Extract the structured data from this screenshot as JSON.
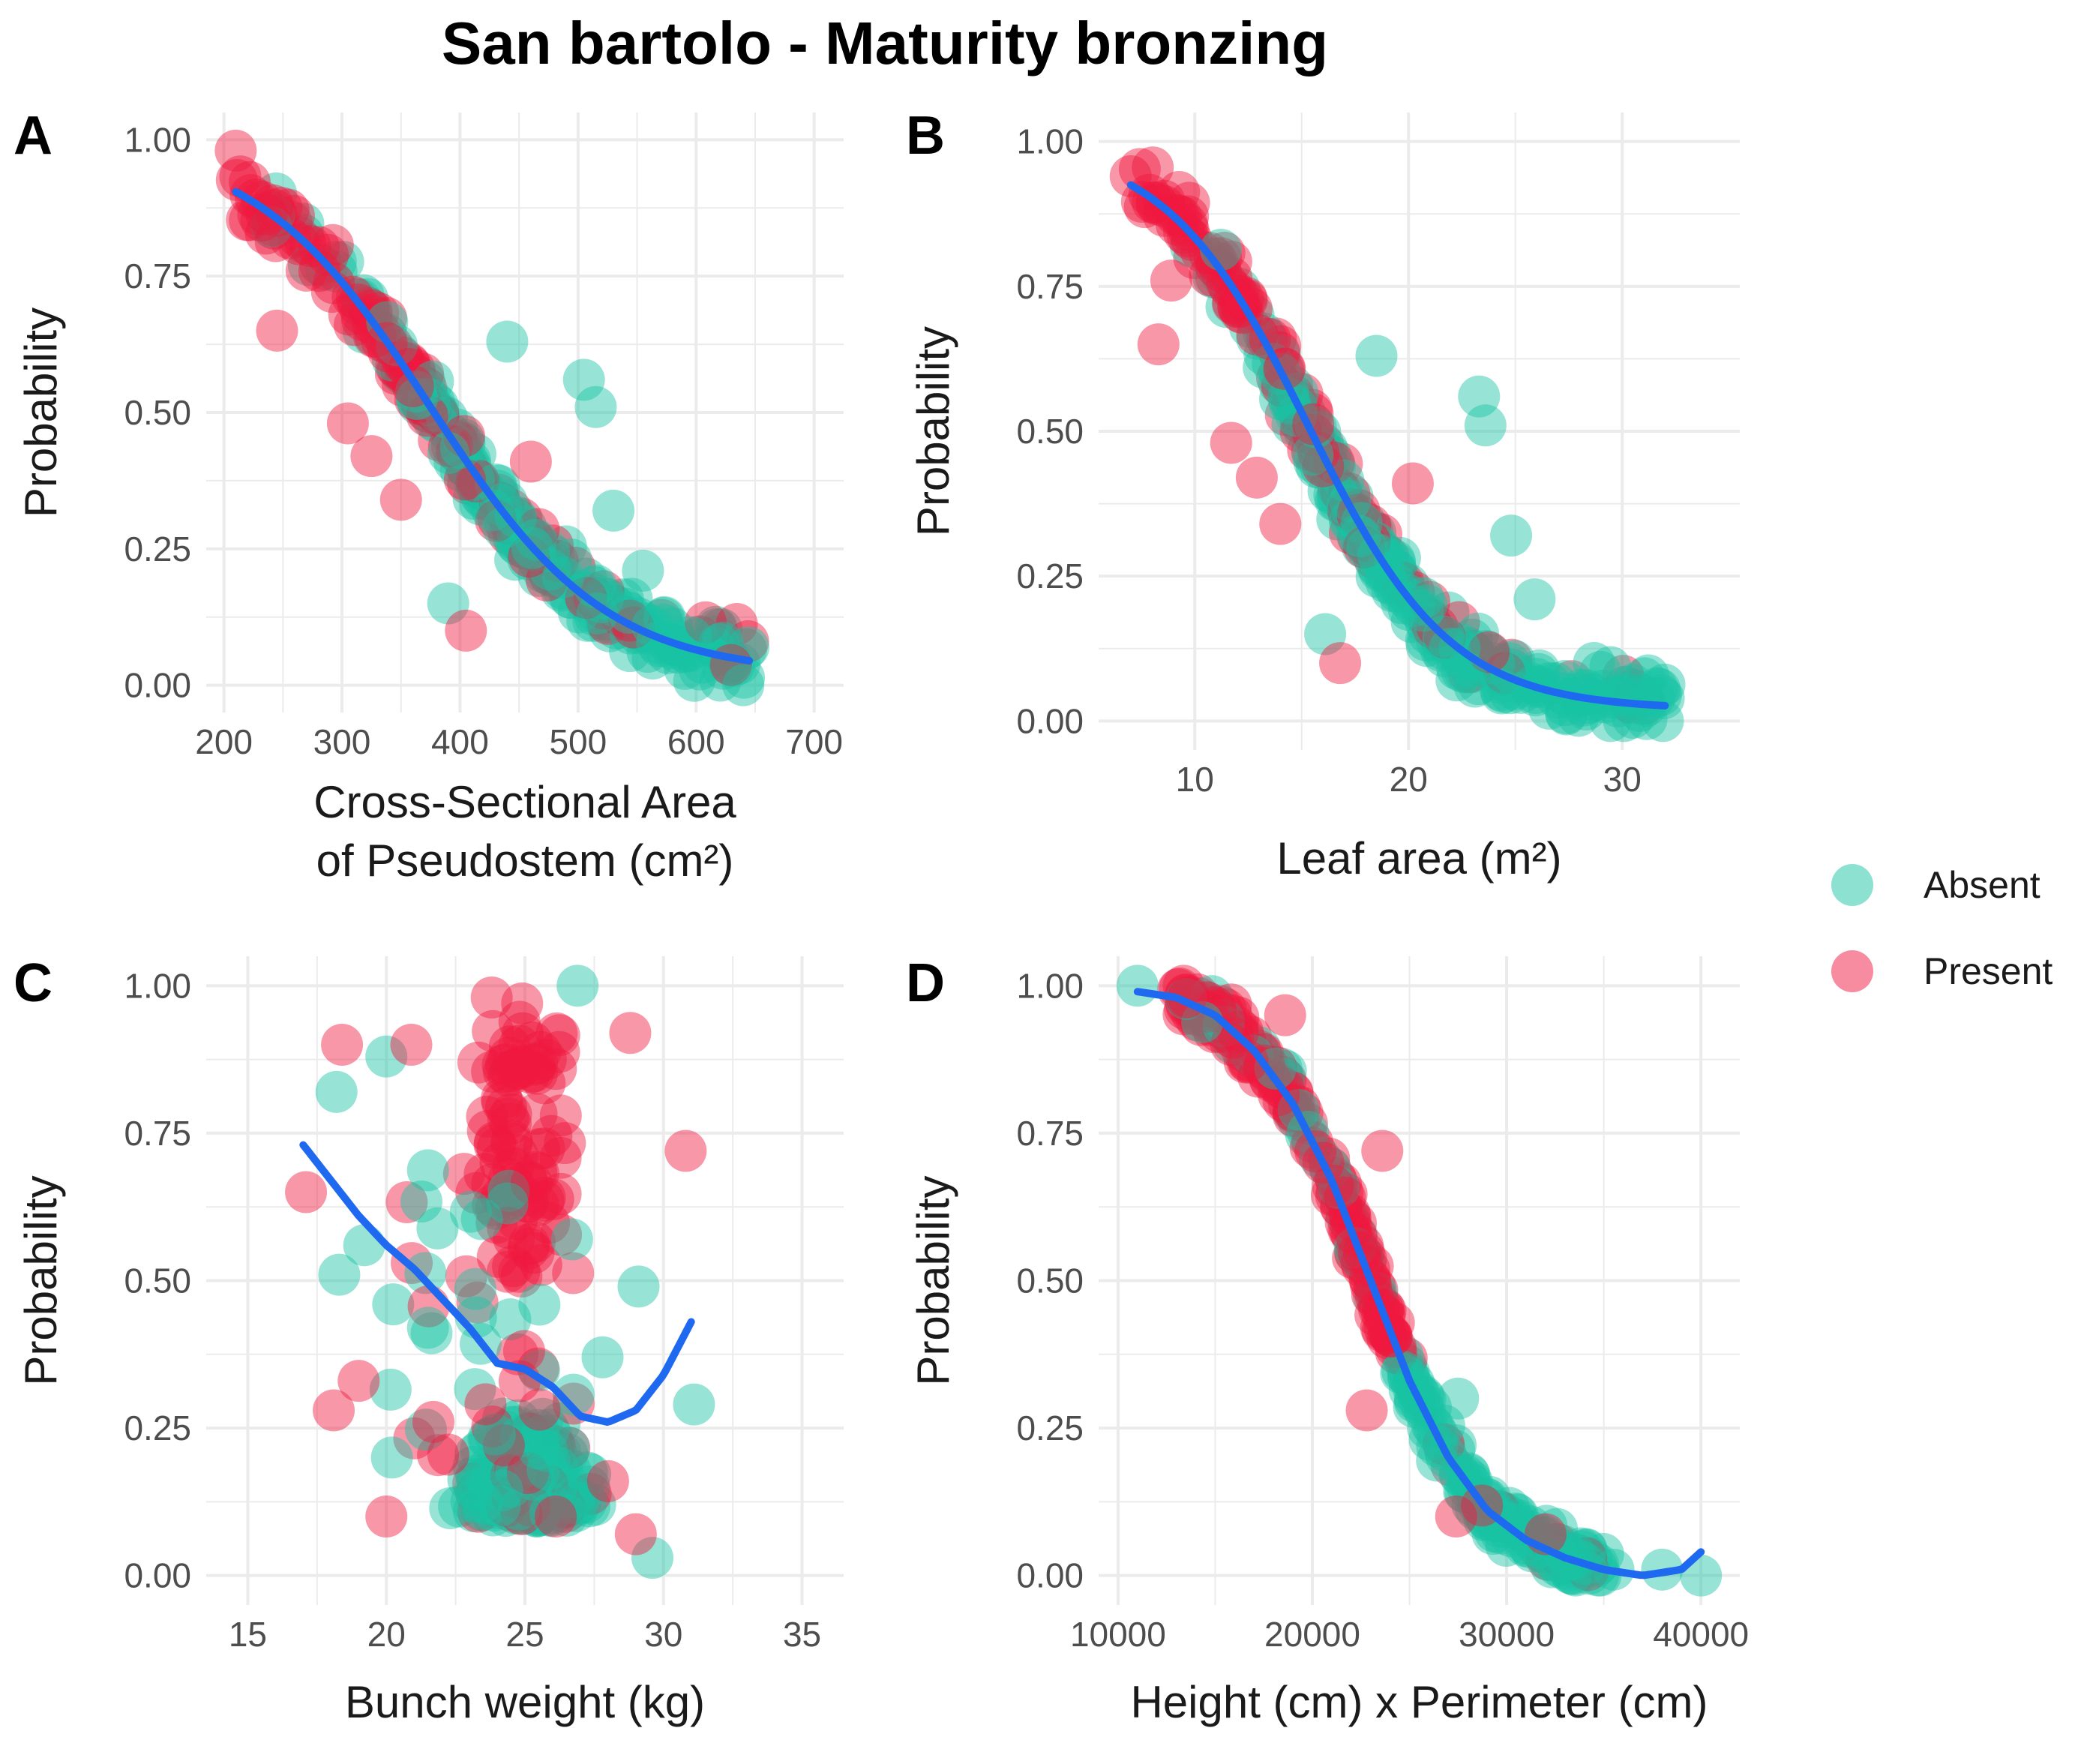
{
  "title": "San bartolo - Maturity bronzing",
  "colors": {
    "absent": "#19c3a4",
    "present": "#f0183f",
    "fit": "#1f69f0",
    "grid": "#ebebeb"
  },
  "legend": {
    "items": [
      {
        "label": "Absent",
        "key": "absent"
      },
      {
        "label": "Present",
        "key": "present"
      }
    ]
  },
  "chart_data": [
    {
      "id": "A",
      "letter": "A",
      "type": "scatter",
      "xlabel_lines": [
        "Cross-Sectional Area",
        "of Pseudostem (cm²)"
      ],
      "ylabel": "Probability",
      "xlim": [
        185,
        725
      ],
      "ylim": [
        -0.05,
        1.05
      ],
      "x_ticks": [
        200,
        300,
        400,
        500,
        600,
        700
      ],
      "x_tick_labels": [
        "200",
        "300",
        "400",
        "500",
        "600",
        "700"
      ],
      "y_ticks": [
        0,
        0.25,
        0.5,
        0.75,
        1.0
      ],
      "y_tick_labels": [
        "0.00",
        "0.25",
        "0.50",
        "0.75",
        "1.00"
      ],
      "fit": {
        "type": "logistic",
        "x0": 375,
        "k": 0.0135,
        "floor": 0.02
      },
      "x_range": [
        210,
        645
      ],
      "x_center": 400,
      "outliers": {
        "absent": [
          [
            505,
            0.56
          ],
          [
            515,
            0.51
          ],
          [
            440,
            0.63
          ],
          [
            555,
            0.21
          ],
          [
            530,
            0.32
          ],
          [
            390,
            0.15
          ],
          [
            640,
            0.0
          ]
        ],
        "present": [
          [
            210,
            0.98
          ],
          [
            245,
            0.65
          ],
          [
            305,
            0.48
          ],
          [
            325,
            0.42
          ],
          [
            405,
            0.1
          ],
          [
            350,
            0.34
          ],
          [
            460,
            0.41
          ],
          [
            270,
            0.76
          ]
        ]
      },
      "seed": 11
    },
    {
      "id": "B",
      "letter": "B",
      "type": "scatter",
      "xlabel_lines": [
        "Leaf area (m²)"
      ],
      "ylabel": "Probability",
      "xlim": [
        5.5,
        35.5
      ],
      "ylim": [
        -0.05,
        1.05
      ],
      "x_ticks": [
        10,
        20,
        30
      ],
      "x_tick_labels": [
        "10",
        "20",
        "30"
      ],
      "y_ticks": [
        0,
        0.25,
        0.5,
        0.75,
        1.0
      ],
      "y_tick_labels": [
        "0.00",
        "0.25",
        "0.50",
        "0.75",
        "1.00"
      ],
      "fit": {
        "type": "logistic",
        "x0": 15.3,
        "k": 0.3,
        "floor": 0.02
      },
      "x_range": [
        7,
        32
      ],
      "x_center": 17,
      "outliers": {
        "absent": [
          [
            23.3,
            0.56
          ],
          [
            23.6,
            0.51
          ],
          [
            18.5,
            0.63
          ],
          [
            25.9,
            0.21
          ],
          [
            24.8,
            0.32
          ],
          [
            16.1,
            0.15
          ],
          [
            31.9,
            0.0
          ]
        ],
        "present": [
          [
            7,
            0.94
          ],
          [
            8.3,
            0.65
          ],
          [
            11.7,
            0.48
          ],
          [
            12.9,
            0.42
          ],
          [
            16.8,
            0.1
          ],
          [
            14,
            0.34
          ],
          [
            20.2,
            0.41
          ],
          [
            8.9,
            0.76
          ]
        ]
      },
      "seed": 23
    },
    {
      "id": "C",
      "letter": "C",
      "type": "scatter",
      "xlabel_lines": [
        "Bunch weight (kg)"
      ],
      "ylabel": "Probability",
      "xlim": [
        13.5,
        36.5
      ],
      "ylim": [
        -0.05,
        1.05
      ],
      "x_ticks": [
        15,
        20,
        25,
        30,
        35
      ],
      "x_tick_labels": [
        "15",
        "20",
        "25",
        "30",
        "35"
      ],
      "y_ticks": [
        0,
        0.25,
        0.5,
        0.75,
        1.0
      ],
      "y_tick_labels": [
        "0.00",
        "0.25",
        "0.50",
        "0.75",
        "1.00"
      ],
      "fit": {
        "type": "points",
        "x": [
          17,
          18,
          19,
          20,
          21,
          22,
          23,
          24,
          25,
          26,
          27,
          28,
          29,
          30,
          31
        ],
        "y": [
          0.73,
          0.67,
          0.61,
          0.56,
          0.52,
          0.47,
          0.42,
          0.36,
          0.35,
          0.32,
          0.27,
          0.26,
          0.28,
          0.34,
          0.43
        ]
      },
      "outliers": {
        "absent": [
          [
            26.9,
            1.0
          ],
          [
            31.1,
            0.29
          ],
          [
            29.1,
            0.49
          ],
          [
            18.3,
            0.51
          ],
          [
            19.2,
            0.56
          ],
          [
            20,
            0.88
          ],
          [
            18.2,
            0.82
          ],
          [
            29.6,
            0.03
          ],
          [
            27.8,
            0.37
          ],
          [
            20.2,
            0.2
          ],
          [
            21.5,
            0.42
          ],
          [
            26.7,
            0.57
          ]
        ],
        "present": [
          [
            30.8,
            0.72
          ],
          [
            28.8,
            0.92
          ],
          [
            17.1,
            0.65
          ],
          [
            18.1,
            0.28
          ],
          [
            20,
            0.1
          ],
          [
            18.4,
            0.9
          ],
          [
            20.9,
            0.9
          ],
          [
            29,
            0.07
          ],
          [
            24.9,
            0.97
          ],
          [
            23.8,
            0.98
          ],
          [
            19,
            0.33
          ],
          [
            28,
            0.16
          ]
        ]
      },
      "seed": 37
    },
    {
      "id": "D",
      "letter": "D",
      "type": "scatter",
      "xlabel_lines": [
        "Height (cm) x Perimeter (cm)"
      ],
      "ylabel": "Probability",
      "xlim": [
        9000,
        42000
      ],
      "ylim": [
        -0.05,
        1.05
      ],
      "x_ticks": [
        10000,
        20000,
        30000,
        40000
      ],
      "x_tick_labels": [
        "10000",
        "20000",
        "30000",
        "40000"
      ],
      "y_ticks": [
        0,
        0.25,
        0.5,
        0.75,
        1.0
      ],
      "y_tick_labels": [
        "0.00",
        "0.25",
        "0.50",
        "0.75",
        "1.00"
      ],
      "fit": {
        "type": "points",
        "x": [
          11000,
          13000,
          15000,
          17000,
          19000,
          21000,
          23000,
          25000,
          27000,
          29000,
          31000,
          33000,
          35000,
          37000,
          39000,
          40000
        ],
        "y": [
          0.99,
          0.98,
          0.95,
          0.89,
          0.8,
          0.67,
          0.5,
          0.33,
          0.2,
          0.11,
          0.06,
          0.03,
          0.01,
          0.0,
          0.01,
          0.04
        ]
      },
      "outliers": {
        "absent": [
          [
            11000,
            1.0
          ],
          [
            40000,
            0.0
          ],
          [
            38000,
            0.01
          ],
          [
            35500,
            0.01
          ],
          [
            27500,
            0.3
          ]
        ],
        "present": [
          [
            13500,
            0.98
          ],
          [
            23600,
            0.72
          ],
          [
            22800,
            0.28
          ],
          [
            32000,
            0.07
          ],
          [
            27400,
            0.1
          ],
          [
            18600,
            0.95
          ]
        ]
      },
      "seed": 51
    }
  ]
}
